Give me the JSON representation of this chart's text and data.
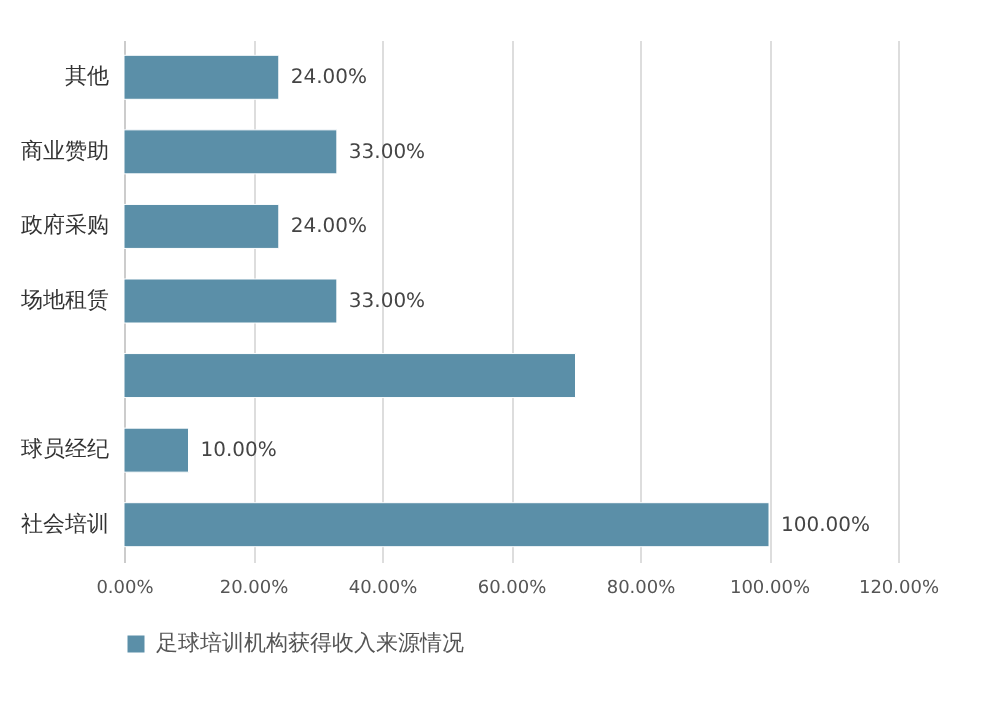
{
  "chart_data": {
    "type": "bar",
    "orientation": "horizontal",
    "categories": [
      "其他",
      "商业赞助",
      "政府采购",
      "场地租赁",
      null,
      "球员经纪",
      "社会培训"
    ],
    "series": [
      {
        "name": "足球培训机构获得收入来源情况",
        "color": "#5b8fa8",
        "values": [
          24,
          33,
          24,
          33,
          70,
          10,
          100
        ],
        "value_labels": [
          "24.00%",
          "33.00%",
          "24.00%",
          "33.00%",
          null,
          "10.00%",
          "100.00%"
        ]
      }
    ],
    "xlim": [
      0,
      120
    ],
    "xticks": [
      {
        "value": 0,
        "label": "0.00%"
      },
      {
        "value": 20,
        "label": "20.00%"
      },
      {
        "value": 40,
        "label": "40.00%"
      },
      {
        "value": 60,
        "label": "60.00%"
      },
      {
        "value": 80,
        "label": "80.00%"
      },
      {
        "value": 100,
        "label": "100.00%"
      },
      {
        "value": 120,
        "label": "120.00%"
      }
    ],
    "grid": "x",
    "legend": "bottom"
  }
}
